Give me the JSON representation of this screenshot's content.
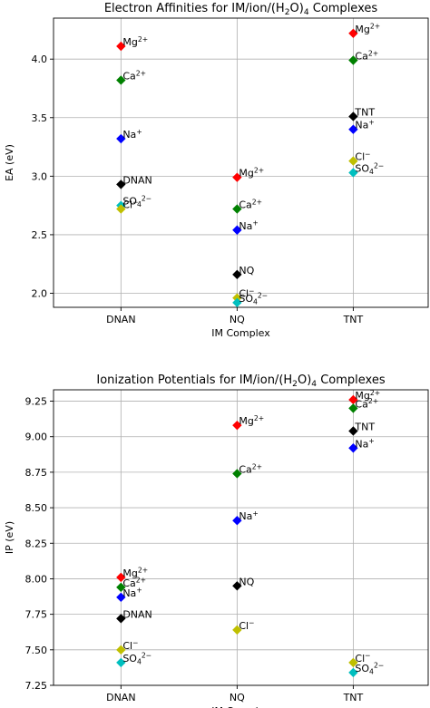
{
  "chart_data": [
    {
      "type": "scatter",
      "title": "Electron Affinities for IM/ion/(H₂O)₄ Complexes",
      "title_parts": [
        {
          "t": "Electron Affinities for IM/ion/(H"
        },
        {
          "t": "2",
          "sub": true
        },
        {
          "t": "O)"
        },
        {
          "t": "4",
          "sub": true
        },
        {
          "t": " Complexes"
        }
      ],
      "xlabel": "IM Complex",
      "ylabel": "EA (eV)",
      "categories": [
        "DNAN",
        "NQ",
        "TNT"
      ],
      "ylim": [
        1.88,
        4.35
      ],
      "yticks": [
        "2.0",
        "2.5",
        "3.0",
        "3.5",
        "4.0"
      ],
      "grid": true,
      "points": [
        {
          "x": "DNAN",
          "y": 4.11,
          "color": "#ff0000",
          "label_parts": [
            {
              "t": "Mg"
            },
            {
              "t": "2+",
              "sup": true
            }
          ]
        },
        {
          "x": "DNAN",
          "y": 3.82,
          "color": "#008000",
          "label_parts": [
            {
              "t": "Ca"
            },
            {
              "t": "2+",
              "sup": true
            }
          ]
        },
        {
          "x": "DNAN",
          "y": 3.32,
          "color": "#0000ff",
          "label_parts": [
            {
              "t": "Na"
            },
            {
              "t": "+",
              "sup": true
            }
          ]
        },
        {
          "x": "DNAN",
          "y": 2.93,
          "color": "#000000",
          "label_parts": [
            {
              "t": "DNAN"
            }
          ]
        },
        {
          "x": "DNAN",
          "y": 2.75,
          "color": "#00bfbf",
          "label_parts": [
            {
              "t": "SO"
            },
            {
              "t": "4",
              "sub": true
            },
            {
              "t": "2−",
              "sup": true
            }
          ]
        },
        {
          "x": "DNAN",
          "y": 2.72,
          "color": "#bfbf00",
          "label_parts": [
            {
              "t": "Cl"
            },
            {
              "t": "−",
              "sup": true
            }
          ]
        },
        {
          "x": "NQ",
          "y": 2.99,
          "color": "#ff0000",
          "label_parts": [
            {
              "t": "Mg"
            },
            {
              "t": "2+",
              "sup": true
            }
          ]
        },
        {
          "x": "NQ",
          "y": 2.72,
          "color": "#008000",
          "label_parts": [
            {
              "t": "Ca"
            },
            {
              "t": "2+",
              "sup": true
            }
          ]
        },
        {
          "x": "NQ",
          "y": 2.54,
          "color": "#0000ff",
          "label_parts": [
            {
              "t": "Na"
            },
            {
              "t": "+",
              "sup": true
            }
          ]
        },
        {
          "x": "NQ",
          "y": 2.16,
          "color": "#000000",
          "label_parts": [
            {
              "t": "NQ"
            }
          ]
        },
        {
          "x": "NQ",
          "y": 1.96,
          "color": "#bfbf00",
          "label_parts": [
            {
              "t": "Cl"
            },
            {
              "t": "−",
              "sup": true
            }
          ]
        },
        {
          "x": "NQ",
          "y": 1.92,
          "color": "#00bfbf",
          "label_parts": [
            {
              "t": "SO"
            },
            {
              "t": "4",
              "sub": true
            },
            {
              "t": "2−",
              "sup": true
            }
          ]
        },
        {
          "x": "TNT",
          "y": 4.22,
          "color": "#ff0000",
          "label_parts": [
            {
              "t": "Mg"
            },
            {
              "t": "2+",
              "sup": true
            }
          ]
        },
        {
          "x": "TNT",
          "y": 3.99,
          "color": "#008000",
          "label_parts": [
            {
              "t": "Ca"
            },
            {
              "t": "2+",
              "sup": true
            }
          ]
        },
        {
          "x": "TNT",
          "y": 3.51,
          "color": "#000000",
          "label_parts": [
            {
              "t": "TNT"
            }
          ]
        },
        {
          "x": "TNT",
          "y": 3.4,
          "color": "#0000ff",
          "label_parts": [
            {
              "t": "Na"
            },
            {
              "t": "+",
              "sup": true
            }
          ]
        },
        {
          "x": "TNT",
          "y": 3.13,
          "color": "#bfbf00",
          "label_parts": [
            {
              "t": "Cl"
            },
            {
              "t": "−",
              "sup": true
            }
          ]
        },
        {
          "x": "TNT",
          "y": 3.03,
          "color": "#00bfbf",
          "label_parts": [
            {
              "t": "SO"
            },
            {
              "t": "4",
              "sub": true
            },
            {
              "t": "2−",
              "sup": true
            }
          ]
        }
      ]
    },
    {
      "type": "scatter",
      "title": "Ionization Potentials for IM/ion/(H₂O)₄ Complexes",
      "title_parts": [
        {
          "t": "Ionization Potentials for IM/ion/(H"
        },
        {
          "t": "2",
          "sub": true
        },
        {
          "t": "O)"
        },
        {
          "t": "4",
          "sub": true
        },
        {
          "t": " Complexes"
        }
      ],
      "xlabel": "IM Complex",
      "ylabel": "IP (eV)",
      "categories": [
        "DNAN",
        "NQ",
        "TNT"
      ],
      "ylim": [
        7.25,
        9.33
      ],
      "yticks": [
        "7.25",
        "7.50",
        "7.75",
        "8.00",
        "8.25",
        "8.50",
        "8.75",
        "9.00",
        "9.25"
      ],
      "grid": true,
      "points": [
        {
          "x": "DNAN",
          "y": 8.01,
          "color": "#ff0000",
          "label_parts": [
            {
              "t": "Mg"
            },
            {
              "t": "2+",
              "sup": true
            }
          ]
        },
        {
          "x": "DNAN",
          "y": 7.94,
          "color": "#008000",
          "label_parts": [
            {
              "t": "Ca"
            },
            {
              "t": "2+",
              "sup": true
            }
          ]
        },
        {
          "x": "DNAN",
          "y": 7.87,
          "color": "#0000ff",
          "label_parts": [
            {
              "t": "Na"
            },
            {
              "t": "+",
              "sup": true
            }
          ]
        },
        {
          "x": "DNAN",
          "y": 7.72,
          "color": "#000000",
          "label_parts": [
            {
              "t": "DNAN"
            }
          ]
        },
        {
          "x": "DNAN",
          "y": 7.5,
          "color": "#bfbf00",
          "label_parts": [
            {
              "t": "Cl"
            },
            {
              "t": "−",
              "sup": true
            }
          ]
        },
        {
          "x": "DNAN",
          "y": 7.41,
          "color": "#00bfbf",
          "label_parts": [
            {
              "t": "SO"
            },
            {
              "t": "4",
              "sub": true
            },
            {
              "t": "2−",
              "sup": true
            }
          ]
        },
        {
          "x": "NQ",
          "y": 9.08,
          "color": "#ff0000",
          "label_parts": [
            {
              "t": "Mg"
            },
            {
              "t": "2+",
              "sup": true
            }
          ]
        },
        {
          "x": "NQ",
          "y": 8.74,
          "color": "#008000",
          "label_parts": [
            {
              "t": "Ca"
            },
            {
              "t": "2+",
              "sup": true
            }
          ]
        },
        {
          "x": "NQ",
          "y": 8.41,
          "color": "#0000ff",
          "label_parts": [
            {
              "t": "Na"
            },
            {
              "t": "+",
              "sup": true
            }
          ]
        },
        {
          "x": "NQ",
          "y": 7.95,
          "color": "#000000",
          "label_parts": [
            {
              "t": "NQ"
            }
          ]
        },
        {
          "x": "NQ",
          "y": 7.64,
          "color": "#bfbf00",
          "label_parts": [
            {
              "t": "Cl"
            },
            {
              "t": "−",
              "sup": true
            }
          ]
        },
        {
          "x": "TNT",
          "y": 9.26,
          "color": "#ff0000",
          "label_parts": [
            {
              "t": "Mg"
            },
            {
              "t": "2+",
              "sup": true
            }
          ]
        },
        {
          "x": "TNT",
          "y": 9.2,
          "color": "#008000",
          "label_parts": [
            {
              "t": "Ca"
            },
            {
              "t": "2+",
              "sup": true
            }
          ]
        },
        {
          "x": "TNT",
          "y": 9.04,
          "color": "#000000",
          "label_parts": [
            {
              "t": "TNT"
            }
          ]
        },
        {
          "x": "TNT",
          "y": 8.92,
          "color": "#0000ff",
          "label_parts": [
            {
              "t": "Na"
            },
            {
              "t": "+",
              "sup": true
            }
          ]
        },
        {
          "x": "TNT",
          "y": 7.41,
          "color": "#bfbf00",
          "label_parts": [
            {
              "t": "Cl"
            },
            {
              "t": "−",
              "sup": true
            }
          ]
        },
        {
          "x": "TNT",
          "y": 7.34,
          "color": "#00bfbf",
          "label_parts": [
            {
              "t": "SO"
            },
            {
              "t": "4",
              "sub": true
            },
            {
              "t": "2−",
              "sup": true
            }
          ]
        }
      ]
    }
  ]
}
